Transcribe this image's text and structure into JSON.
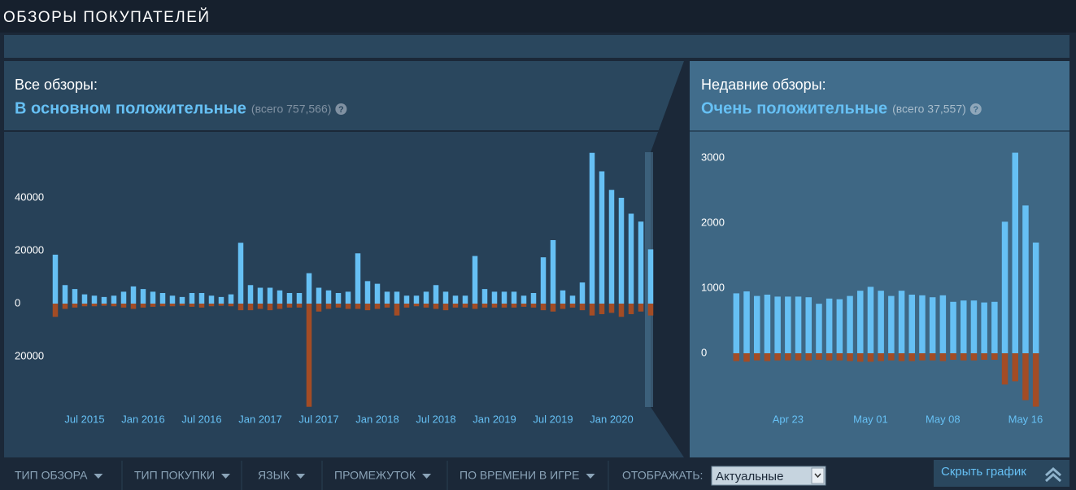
{
  "header": {
    "title": "ОБЗОРЫ ПОКУПАТЕЛЕЙ"
  },
  "summaries": [
    {
      "label": "Все обзоры:",
      "rating": "В основном положительные",
      "total": "(всего 757,566)",
      "help": "?"
    },
    {
      "label": "Недавние обзоры:",
      "rating": "Очень положительные",
      "total": "(всего 37,557)",
      "help": "?"
    }
  ],
  "filters": [
    "ТИП ОБЗОРА",
    "ТИП ПОКУПКИ",
    "ЯЗЫК",
    "ПРОМЕЖУТОК",
    "ПО ВРЕМЕНИ В ИГРЕ"
  ],
  "display": {
    "label": "ОТОБРАЖАТЬ:",
    "selected": "Актуальные"
  },
  "hide_graph": "Скрыть график",
  "chart_data": [
    {
      "type": "bar",
      "categories": [
        null,
        null,
        null,
        "Jul 2015",
        null,
        null,
        null,
        null,
        null,
        "Jan 2016",
        null,
        null,
        null,
        null,
        null,
        "Jul 2016",
        null,
        null,
        null,
        null,
        null,
        "Jan 2017",
        null,
        null,
        null,
        null,
        null,
        "Jul 2017",
        null,
        null,
        null,
        null,
        null,
        "Jan 2018",
        null,
        null,
        null,
        null,
        null,
        "Jul 2018",
        null,
        null,
        null,
        null,
        null,
        "Jan 2019",
        null,
        null,
        null,
        null,
        null,
        "Jul 2019",
        null,
        null,
        null,
        null,
        null,
        "Jan 2020",
        null,
        null,
        null,
        null
      ],
      "series": [
        {
          "color": "#66c0f4",
          "values": [
            18500,
            7000,
            5500,
            3500,
            3000,
            2500,
            3000,
            4500,
            6500,
            5500,
            4500,
            4000,
            3000,
            2500,
            4000,
            4000,
            3000,
            2500,
            3500,
            23000,
            7000,
            6000,
            6000,
            5000,
            4000,
            4000,
            11500,
            6000,
            5000,
            4000,
            4500,
            19000,
            8500,
            7500,
            4500,
            4500,
            3000,
            3000,
            4500,
            7000,
            4500,
            3000,
            3000,
            18000,
            5500,
            4500,
            4500,
            4500,
            3000,
            4000,
            17500,
            24000,
            5000,
            3000,
            8000,
            57000,
            50000,
            43000,
            40000,
            34000,
            31000,
            20500
          ]
        },
        {
          "color": "#a34c25",
          "values": [
            -5000,
            -2000,
            -1500,
            -1000,
            -1000,
            -800,
            -1000,
            -1500,
            -2000,
            -1500,
            -1200,
            -1000,
            -1000,
            -800,
            -1200,
            -1500,
            -1000,
            -800,
            -1000,
            -2500,
            -2500,
            -2000,
            -2500,
            -2000,
            -1500,
            -1500,
            -39000,
            -3000,
            -2000,
            -1500,
            -2000,
            -2000,
            -2500,
            -2000,
            -1500,
            -4500,
            -1500,
            -1000,
            -1500,
            -2000,
            -2500,
            -1500,
            -1500,
            -2000,
            -1500,
            -1500,
            -1500,
            -1500,
            -1200,
            -1500,
            -2500,
            -3000,
            -2000,
            -1500,
            -2500,
            -4500,
            -4000,
            -3500,
            -5000,
            -4000,
            -3000,
            -4500
          ]
        }
      ],
      "ylim": [
        -40000,
        60000
      ],
      "yticks": [
        {
          "value": -20000,
          "label": "20000"
        },
        0,
        20000,
        40000
      ]
    },
    {
      "type": "bar",
      "categories": [
        null,
        null,
        null,
        null,
        null,
        "Apr 23",
        null,
        null,
        null,
        null,
        null,
        null,
        null,
        "May 01",
        null,
        null,
        null,
        null,
        null,
        null,
        "May 08",
        null,
        null,
        null,
        null,
        null,
        null,
        null,
        "May 16",
        null
      ],
      "series": [
        {
          "color": "#66c0f4",
          "values": [
            920,
            950,
            880,
            900,
            870,
            870,
            870,
            860,
            760,
            840,
            830,
            880,
            960,
            1020,
            960,
            880,
            960,
            900,
            890,
            860,
            890,
            790,
            810,
            810,
            780,
            790,
            2020,
            3080,
            2270,
            1700
          ]
        },
        {
          "color": "#a34c25",
          "values": [
            -120,
            -130,
            -110,
            -120,
            -110,
            -110,
            -110,
            -110,
            -100,
            -110,
            -110,
            -120,
            -130,
            -130,
            -120,
            -110,
            -120,
            -120,
            -110,
            -110,
            -120,
            -100,
            -110,
            -110,
            -100,
            -100,
            -480,
            -430,
            -720,
            -820
          ]
        }
      ],
      "ylim": [
        -850,
        3150
      ],
      "yticks": [
        0,
        1000,
        2000,
        3000
      ]
    }
  ]
}
